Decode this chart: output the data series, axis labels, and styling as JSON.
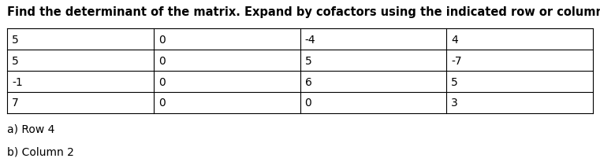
{
  "title": "Find the determinant of the matrix. Expand by cofactors using the indicated row or column.",
  "matrix": [
    [
      "5",
      "0",
      "-4",
      "4"
    ],
    [
      "5",
      "0",
      "5",
      "-7"
    ],
    [
      "-1",
      "0",
      "6",
      "5"
    ],
    [
      "7",
      "0",
      "0",
      "3"
    ]
  ],
  "note_a": "a) Row 4",
  "note_b": "b) Column 2",
  "background_color": "#ffffff",
  "title_fontsize": 10.5,
  "cell_fontsize": 10,
  "note_fontsize": 10
}
